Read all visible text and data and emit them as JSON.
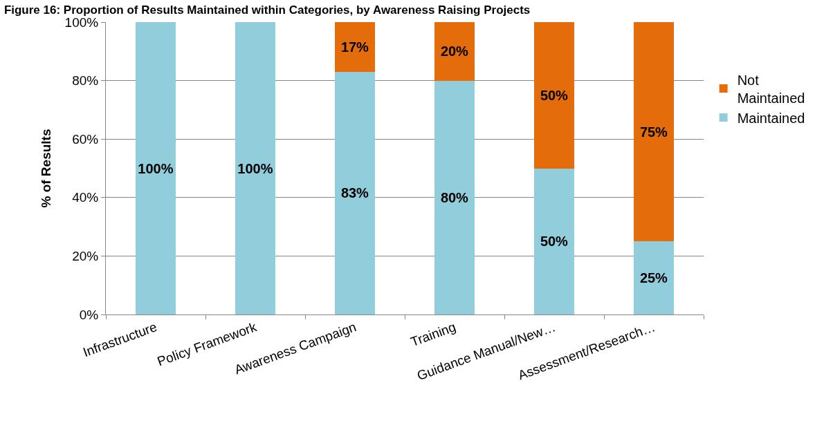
{
  "chart_data": {
    "type": "bar",
    "stacked": true,
    "title": "Figure 16: Proportion of Results Maintained within Categories, by Awareness Raising Projects",
    "ylabel": "% of Results",
    "categories": [
      "Infrastructure",
      "Policy Framework",
      "Awareness Campaign",
      "Training",
      "Guidance Manual/New…",
      "Assessment/Research…"
    ],
    "series": [
      {
        "name": "Maintained",
        "color": "#92cddc",
        "values": [
          100,
          100,
          83,
          80,
          50,
          25
        ],
        "value_labels": [
          "100%",
          "100%",
          "83%",
          "80%",
          "50%",
          "25%"
        ]
      },
      {
        "name": "Not Maintained",
        "color": "#e46c0a",
        "values": [
          0,
          0,
          17,
          20,
          50,
          75
        ],
        "value_labels": [
          null,
          null,
          "17%",
          "20%",
          "50%",
          "75%"
        ]
      }
    ],
    "ylim": [
      0,
      100
    ],
    "yticks": [
      {
        "value": 0,
        "label": "0%"
      },
      {
        "value": 20,
        "label": "20%"
      },
      {
        "value": 40,
        "label": "40%"
      },
      {
        "value": 60,
        "label": "60%"
      },
      {
        "value": 80,
        "label": "80%"
      },
      {
        "value": 100,
        "label": "100%"
      }
    ],
    "grid": "y",
    "legend": "right"
  }
}
